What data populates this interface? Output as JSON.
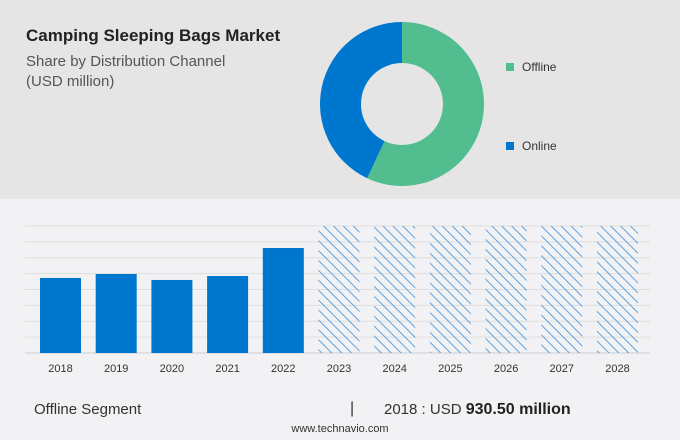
{
  "header": {
    "title": "Camping Sleeping Bags Market",
    "subtitle_line1": "Share by Distribution Channel",
    "subtitle_line2": "(USD million)"
  },
  "chart_data": [
    {
      "type": "pie",
      "subtype": "donut",
      "slices": [
        {
          "name": "Offline",
          "share": 57,
          "color": "#52be8f"
        },
        {
          "name": "Online",
          "share": 43,
          "color": "#0077cf"
        }
      ],
      "legend_placement": "right"
    },
    {
      "type": "bar",
      "categories": [
        "2018",
        "2019",
        "2020",
        "2021",
        "2022",
        "2023",
        "2024",
        "2025",
        "2026",
        "2027",
        "2028"
      ],
      "values": [
        930.5,
        980,
        906,
        955,
        1302,
        null,
        null,
        null,
        null,
        null,
        null
      ],
      "forecast": [
        "2023",
        "2024",
        "2025",
        "2026",
        "2027",
        "2028"
      ],
      "ylim": [
        0,
        1575
      ],
      "grid": true,
      "color": "#0077cf",
      "forecast_style": "hatched"
    }
  ],
  "footer": {
    "segment": "Offline Segment",
    "separator": "|",
    "year_label": "2018 : USD ",
    "value": "930.50 million",
    "site": "www.technavio.com"
  }
}
